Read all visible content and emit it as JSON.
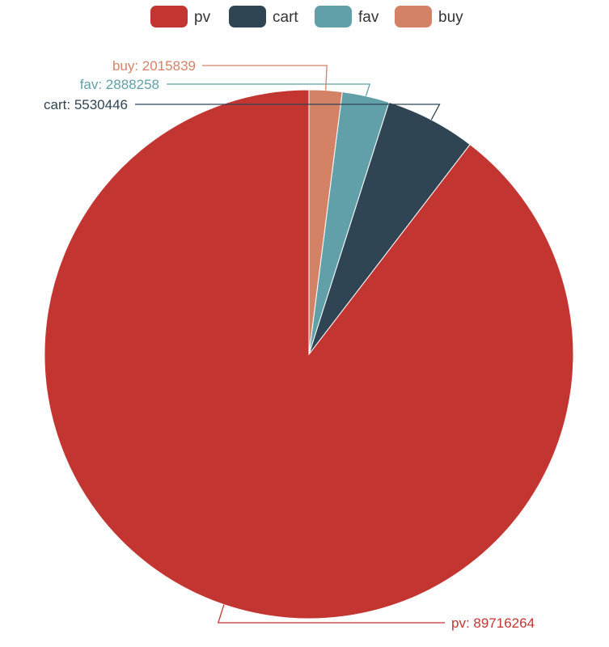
{
  "chart_data": {
    "type": "pie",
    "title": "",
    "legend_position": "top-center",
    "series": [
      {
        "name": "pv",
        "value": 89716264,
        "color": "#c23531",
        "label": "pv: 89716264"
      },
      {
        "name": "cart",
        "value": 5530446,
        "color": "#2f4554",
        "label": "cart: 5530446"
      },
      {
        "name": "fav",
        "value": 2888258,
        "color": "#61a0a8",
        "label": "fav: 2888258"
      },
      {
        "name": "buy",
        "value": 2015839,
        "color": "#d48265",
        "label": "buy: 2015839"
      }
    ]
  }
}
